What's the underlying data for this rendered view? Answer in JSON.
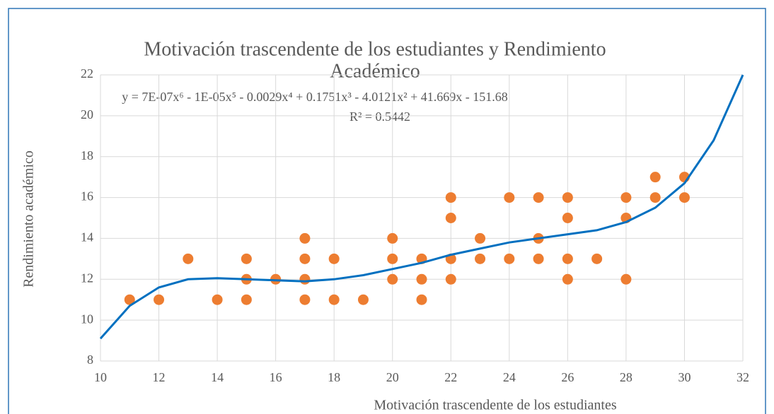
{
  "chart_data": {
    "type": "scatter",
    "title": [
      "Motivación trascendente de los estudiantes y Rendimiento",
      "Académico"
    ],
    "equation": "y = 7E-07x⁶ - 1E-05x⁵ - 0.0029x⁴ + 0.1751x³ - 4.0121x² + 41.669x - 151.68",
    "r_squared": "R² = 0.5442",
    "xlabel": "Motivación trascendente de los estudiantes",
    "ylabel": "Rendimiento académico",
    "xlim": [
      10,
      32
    ],
    "xticks": [
      10,
      12,
      14,
      16,
      18,
      20,
      22,
      24,
      26,
      28,
      30,
      32
    ],
    "ylim": [
      8,
      22
    ],
    "yticks": [
      8,
      10,
      12,
      14,
      16,
      18,
      20,
      22
    ],
    "grid": true,
    "series": [
      {
        "color": "#ed7d31",
        "x": [
          11,
          12,
          13,
          14,
          15,
          15,
          15,
          16,
          17,
          17,
          17,
          17,
          18,
          18,
          19,
          20,
          20,
          20,
          21,
          21,
          21,
          22,
          22,
          22,
          22,
          23,
          23,
          24,
          24,
          25,
          25,
          25,
          26,
          26,
          26,
          26,
          27,
          28,
          28,
          28,
          29,
          29,
          30,
          30
        ],
        "values": [
          11,
          11,
          13,
          11,
          13,
          12,
          11,
          12,
          14,
          13,
          12,
          11,
          13,
          11,
          11,
          14,
          13,
          12,
          13,
          12,
          11,
          16,
          15,
          13,
          12,
          14,
          13,
          16,
          13,
          16,
          14,
          13,
          16,
          15,
          13,
          12,
          13,
          16,
          15,
          12,
          17,
          16,
          17,
          16
        ]
      }
    ],
    "trendline": {
      "color": "#0070c0",
      "x": [
        10,
        11,
        12,
        13,
        14,
        15,
        16,
        17,
        18,
        19,
        20,
        21,
        22,
        23,
        24,
        25,
        26,
        27,
        28,
        29,
        30,
        31,
        32
      ],
      "values": [
        9.1,
        10.7,
        11.6,
        12.0,
        12.05,
        12.0,
        11.95,
        11.9,
        12.0,
        12.2,
        12.5,
        12.8,
        13.2,
        13.5,
        13.8,
        14.0,
        14.2,
        14.4,
        14.8,
        15.5,
        16.7,
        18.8,
        22
      ]
    }
  }
}
